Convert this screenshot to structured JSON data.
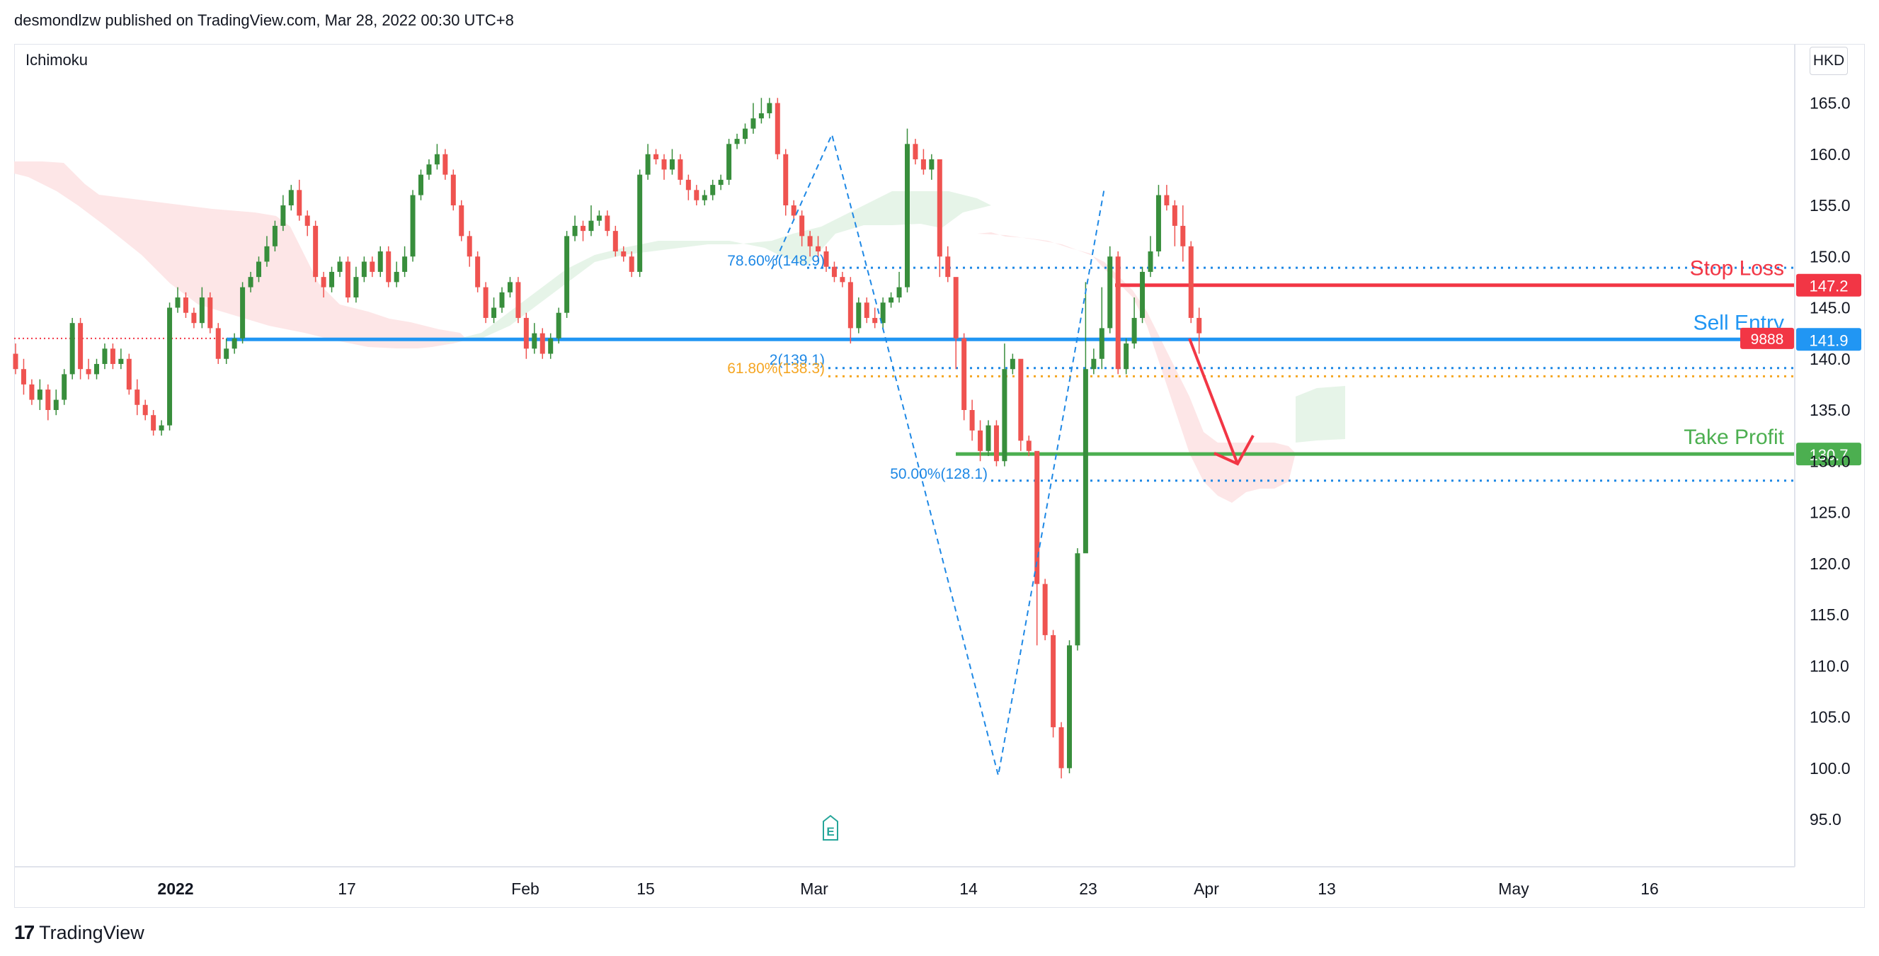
{
  "header": {
    "published": "desmondlzw published on TradingView.com, Mar 28, 2022 00:30 UTC+8"
  },
  "indicator": {
    "name": "Ichimoku"
  },
  "currency": "HKD",
  "footer": {
    "logo": "17",
    "brand": "TradingView"
  },
  "chart_data": {
    "type": "candlestick",
    "title": "",
    "currency": "HKD",
    "y_ticks": [
      "165.0",
      "160.0",
      "155.0",
      "150.0",
      "145.0",
      "140.0",
      "135.0",
      "130.0",
      "125.0",
      "120.0",
      "115.0",
      "110.0",
      "105.0",
      "100.0",
      "95.0"
    ],
    "x_ticks": [
      "2022",
      "17",
      "Feb",
      "15",
      "Mar",
      "14",
      "23",
      "Apr",
      "13",
      "May",
      "16"
    ],
    "ylim": [
      90,
      170
    ],
    "levels": [
      {
        "name": "Stop Loss",
        "value": 147.2,
        "label": "147.2",
        "color": "#f23645"
      },
      {
        "name": "Sell Entry",
        "value": 141.9,
        "label": "141.9",
        "color": "#2196f3"
      },
      {
        "name": "Take Profit",
        "value": 130.7,
        "label": "130.7",
        "color": "#4caf50"
      }
    ],
    "current_price_tag": "9888",
    "fibonacci": [
      {
        "label": "78.60%(148.9)",
        "value": 148.9,
        "color": "#1e88e5"
      },
      {
        "label": "2(139.1)",
        "value": 139.1,
        "color": "#1e88e5"
      },
      {
        "label": "61.80%(138.3)",
        "value": 138.3,
        "color": "#f5a623"
      },
      {
        "label": "50.00%(128.1)",
        "value": 128.1,
        "color": "#1e88e5"
      }
    ],
    "event_marker": "E",
    "candles": [
      [
        140.5,
        139.0,
        141.5,
        138.5
      ],
      [
        139.0,
        137.5,
        140.0,
        136.5
      ],
      [
        137.5,
        136.0,
        138.0,
        135.5
      ],
      [
        136.0,
        137.0,
        138.0,
        135.0
      ],
      [
        137.0,
        135.0,
        137.5,
        134.0
      ],
      [
        135.0,
        136.0,
        137.0,
        134.5
      ],
      [
        136.0,
        138.5,
        139.0,
        135.5
      ],
      [
        138.5,
        143.5,
        144.0,
        138.0
      ],
      [
        143.5,
        139.0,
        144.0,
        138.0
      ],
      [
        139.0,
        138.5,
        140.0,
        138.0
      ],
      [
        138.5,
        139.5,
        140.0,
        138.0
      ],
      [
        139.5,
        141.0,
        141.5,
        139.0
      ],
      [
        141.0,
        139.5,
        141.5,
        139.0
      ],
      [
        139.5,
        140.0,
        141.0,
        139.0
      ],
      [
        140.0,
        137.0,
        140.5,
        136.5
      ],
      [
        137.0,
        135.5,
        138.0,
        134.5
      ],
      [
        135.5,
        134.5,
        136.0,
        134.0
      ],
      [
        134.5,
        133.0,
        135.0,
        132.5
      ],
      [
        133.0,
        133.5,
        134.0,
        132.5
      ],
      [
        133.5,
        145.0,
        145.5,
        133.0
      ],
      [
        145.0,
        146.0,
        147.0,
        144.5
      ],
      [
        146.0,
        144.5,
        146.5,
        144.0
      ],
      [
        144.5,
        143.5,
        145.0,
        143.0
      ],
      [
        143.5,
        146.0,
        147.0,
        143.0
      ],
      [
        146.0,
        143.0,
        146.5,
        142.5
      ],
      [
        143.0,
        140.0,
        143.5,
        139.5
      ],
      [
        140.0,
        141.0,
        142.0,
        139.5
      ],
      [
        141.0,
        142.0,
        142.5,
        140.5
      ],
      [
        142.0,
        147.0,
        147.5,
        141.5
      ],
      [
        147.0,
        148.0,
        148.5,
        146.5
      ],
      [
        148.0,
        149.5,
        150.0,
        147.5
      ],
      [
        149.5,
        151.0,
        152.0,
        149.0
      ],
      [
        151.0,
        153.0,
        153.5,
        150.5
      ],
      [
        153.0,
        155.0,
        156.0,
        152.5
      ],
      [
        155.0,
        156.5,
        157.0,
        154.5
      ],
      [
        156.5,
        154.0,
        157.5,
        153.5
      ],
      [
        154.0,
        153.0,
        154.5,
        152.0
      ],
      [
        153.0,
        148.0,
        153.5,
        147.5
      ],
      [
        148.0,
        147.0,
        148.5,
        146.0
      ],
      [
        147.0,
        148.5,
        149.0,
        146.5
      ],
      [
        148.5,
        149.5,
        150.0,
        148.0
      ],
      [
        149.5,
        146.0,
        150.0,
        145.5
      ],
      [
        146.0,
        148.0,
        149.0,
        145.5
      ],
      [
        148.0,
        149.5,
        150.0,
        147.5
      ],
      [
        149.5,
        148.5,
        150.0,
        148.0
      ],
      [
        148.5,
        150.5,
        151.0,
        148.0
      ],
      [
        150.5,
        147.5,
        151.0,
        147.0
      ],
      [
        147.5,
        148.5,
        149.5,
        147.0
      ],
      [
        148.5,
        150.0,
        151.0,
        148.0
      ],
      [
        150.0,
        156.0,
        156.5,
        149.5
      ],
      [
        156.0,
        158.0,
        158.5,
        155.5
      ],
      [
        158.0,
        159.0,
        159.5,
        157.5
      ],
      [
        159.0,
        160.0,
        161.0,
        158.5
      ],
      [
        160.0,
        158.0,
        160.5,
        157.5
      ],
      [
        158.0,
        155.0,
        158.5,
        154.5
      ],
      [
        155.0,
        152.0,
        155.5,
        151.5
      ],
      [
        152.0,
        150.0,
        152.5,
        149.0
      ],
      [
        150.0,
        147.0,
        150.5,
        146.5
      ],
      [
        147.0,
        144.0,
        147.5,
        143.5
      ],
      [
        144.0,
        145.0,
        146.0,
        143.5
      ],
      [
        145.0,
        146.5,
        147.0,
        144.5
      ],
      [
        146.5,
        147.5,
        148.0,
        146.0
      ],
      [
        147.5,
        144.0,
        148.0,
        143.5
      ],
      [
        144.0,
        141.0,
        144.5,
        140.0
      ],
      [
        141.0,
        142.5,
        143.5,
        140.5
      ],
      [
        142.5,
        140.5,
        143.0,
        140.0
      ],
      [
        140.5,
        142.0,
        142.5,
        140.0
      ],
      [
        142.0,
        144.5,
        145.0,
        141.5
      ],
      [
        144.5,
        152.0,
        152.5,
        144.0
      ],
      [
        152.0,
        153.0,
        154.0,
        151.5
      ],
      [
        153.0,
        152.5,
        153.5,
        151.5
      ],
      [
        152.5,
        153.5,
        155.0,
        152.0
      ],
      [
        153.5,
        154.0,
        154.5,
        153.0
      ],
      [
        154.0,
        152.5,
        154.5,
        152.0
      ],
      [
        152.5,
        150.5,
        153.0,
        150.0
      ],
      [
        150.5,
        150.0,
        151.0,
        149.5
      ],
      [
        150.0,
        148.5,
        150.5,
        148.0
      ],
      [
        148.5,
        158.0,
        158.5,
        148.0
      ],
      [
        158.0,
        160.0,
        161.0,
        157.5
      ],
      [
        160.0,
        159.5,
        160.5,
        159.0
      ],
      [
        159.5,
        158.5,
        160.0,
        157.5
      ],
      [
        158.5,
        159.5,
        160.5,
        158.0
      ],
      [
        159.5,
        157.5,
        160.0,
        157.0
      ],
      [
        157.5,
        156.5,
        158.0,
        155.5
      ],
      [
        156.5,
        155.5,
        157.0,
        155.0
      ],
      [
        155.5,
        156.0,
        156.5,
        155.0
      ],
      [
        156.0,
        157.0,
        157.5,
        155.5
      ],
      [
        157.0,
        157.5,
        158.0,
        156.5
      ],
      [
        157.5,
        161.0,
        161.5,
        157.0
      ],
      [
        161.0,
        161.5,
        162.0,
        160.5
      ],
      [
        161.5,
        162.5,
        163.0,
        161.0
      ],
      [
        162.5,
        163.5,
        165.0,
        162.0
      ],
      [
        163.5,
        164.0,
        165.5,
        163.0
      ],
      [
        164.0,
        165.0,
        165.5,
        163.5
      ],
      [
        165.0,
        160.0,
        165.5,
        159.5
      ],
      [
        160.0,
        155.0,
        160.5,
        154.0
      ],
      [
        155.0,
        154.0,
        155.5,
        153.5
      ],
      [
        154.0,
        152.0,
        154.5,
        151.0
      ],
      [
        152.0,
        151.0,
        152.5,
        150.0
      ],
      [
        151.0,
        150.5,
        152.0,
        149.5
      ],
      [
        150.5,
        149.0,
        151.0,
        148.5
      ],
      [
        149.0,
        148.0,
        149.5,
        147.5
      ],
      [
        148.0,
        147.5,
        148.5,
        147.0
      ],
      [
        147.5,
        143.0,
        148.0,
        141.5
      ],
      [
        143.0,
        145.5,
        146.0,
        142.5
      ],
      [
        145.5,
        144.0,
        146.0,
        143.5
      ],
      [
        144.0,
        143.5,
        145.0,
        143.0
      ],
      [
        143.5,
        145.5,
        146.0,
        143.0
      ],
      [
        145.5,
        146.0,
        146.5,
        145.0
      ],
      [
        146.0,
        147.0,
        148.5,
        145.5
      ],
      [
        147.0,
        161.0,
        162.5,
        146.5
      ],
      [
        161.0,
        159.5,
        161.5,
        159.0
      ],
      [
        159.5,
        158.5,
        160.5,
        158.0
      ],
      [
        158.5,
        159.5,
        160.0,
        157.5
      ],
      [
        159.5,
        150.0,
        150.5,
        148.0
      ],
      [
        150.0,
        148.0,
        151.0,
        147.5
      ],
      [
        148.0,
        142.0,
        142.5,
        139.0
      ],
      [
        142.0,
        135.0,
        142.5,
        134.0
      ],
      [
        135.0,
        133.0,
        136.0,
        132.0
      ],
      [
        133.0,
        131.0,
        134.0,
        130.0
      ],
      [
        131.0,
        133.5,
        134.0,
        130.5
      ],
      [
        133.5,
        130.0,
        134.0,
        129.5
      ],
      [
        130.0,
        139.0,
        141.5,
        129.5
      ],
      [
        139.0,
        140.0,
        140.5,
        138.5
      ],
      [
        140.0,
        132.0,
        134.0,
        131.0
      ],
      [
        132.0,
        131.0,
        132.5,
        130.5
      ],
      [
        131.0,
        118.0,
        119.0,
        112.0
      ],
      [
        118.0,
        113.0,
        118.5,
        112.5
      ],
      [
        113.0,
        104.0,
        113.5,
        103.0
      ],
      [
        104.0,
        100.0,
        104.5,
        99.0
      ],
      [
        100.0,
        112.0,
        112.5,
        99.5
      ],
      [
        112.0,
        121.0,
        121.5,
        111.5
      ],
      [
        121.0,
        139.0,
        147.5,
        135.0
      ],
      [
        139.0,
        140.0,
        141.0,
        138.5
      ],
      [
        140.0,
        143.0,
        147.0,
        139.0
      ],
      [
        143.0,
        150.0,
        151.0,
        142.5
      ],
      [
        150.0,
        139.0,
        150.5,
        138.5
      ],
      [
        139.0,
        141.5,
        142.0,
        138.5
      ],
      [
        141.5,
        144.0,
        146.0,
        141.0
      ],
      [
        144.0,
        148.5,
        149.0,
        143.5
      ],
      [
        148.5,
        150.5,
        152.0,
        148.0
      ],
      [
        150.5,
        156.0,
        157.0,
        150.0
      ],
      [
        156.0,
        155.0,
        157.0,
        154.5
      ],
      [
        155.0,
        153.0,
        155.5,
        151.0
      ],
      [
        153.0,
        151.0,
        155.0,
        149.5
      ],
      [
        151.0,
        144.0,
        151.5,
        143.5
      ],
      [
        144.0,
        142.5,
        145.0,
        140.5
      ]
    ]
  }
}
